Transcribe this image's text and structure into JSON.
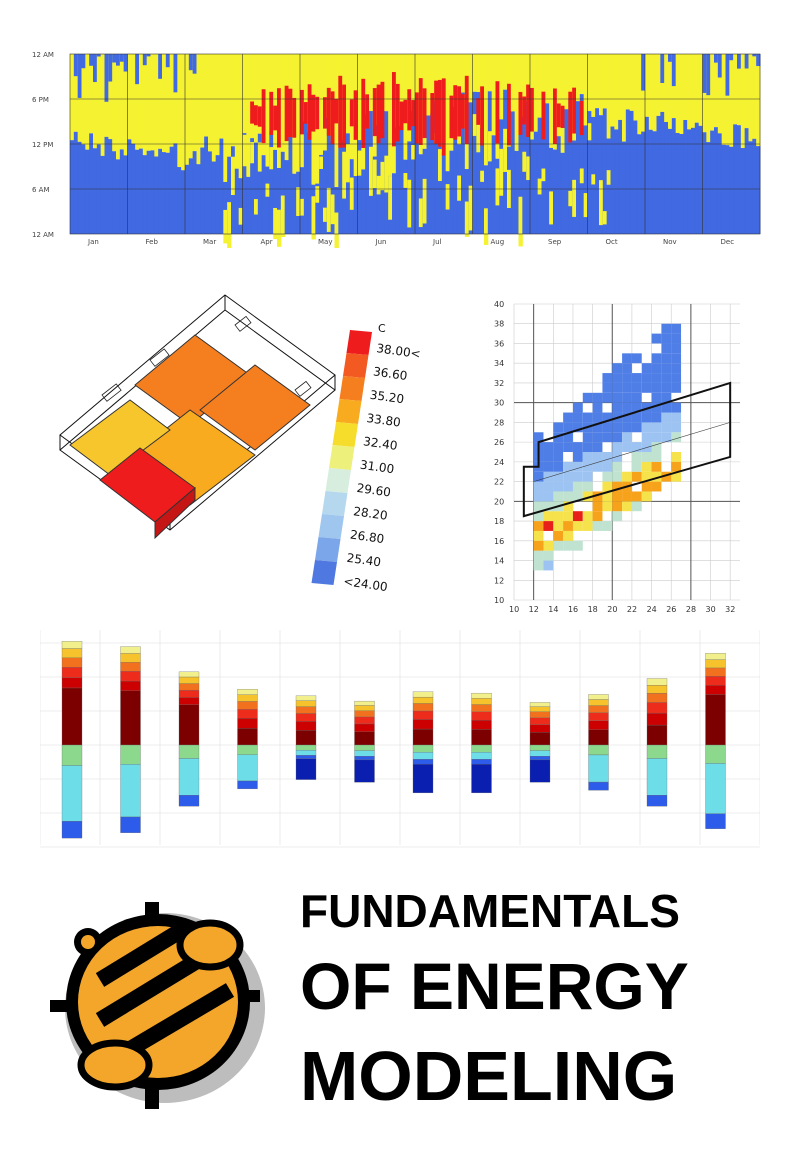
{
  "colors": {
    "hot": "#ee1c1c",
    "neutral": "#f5f231",
    "cold": "#4169e1",
    "logo_orange": "#f4a62a"
  },
  "heatmap_chart": {
    "y_ticks": [
      "12 AM",
      "6 PM",
      "12 PM",
      "6 AM",
      "12 AM"
    ],
    "x_ticks": [
      "Jan",
      "Feb",
      "Mar",
      "Apr",
      "May",
      "Jun",
      "Jul",
      "Aug",
      "Sep",
      "Oct",
      "Nov",
      "Dec"
    ]
  },
  "legend": {
    "unit": "C",
    "labels": [
      "38.00<",
      "36.60",
      "35.20",
      "33.80",
      "32.40",
      "31.00",
      "29.60",
      "28.20",
      "26.80",
      "25.40",
      "<24.00"
    ],
    "colors": [
      "#ee1c1c",
      "#f25a22",
      "#f57f1f",
      "#f8ab1f",
      "#f6dd2c",
      "#edf07a",
      "#d7eedf",
      "#b6d8ef",
      "#9fc6ee",
      "#7ba6ea",
      "#4f78e0"
    ]
  },
  "psychro_chart": {
    "x_ticks": [
      "10",
      "12",
      "14",
      "16",
      "18",
      "20",
      "22",
      "24",
      "26",
      "28",
      "30",
      "32"
    ],
    "y_ticks": [
      "40",
      "38",
      "36",
      "34",
      "32",
      "30",
      "28",
      "26",
      "24",
      "22",
      "20",
      "18",
      "16",
      "14",
      "12",
      "10"
    ]
  },
  "bar_chart": {
    "type": "bar",
    "months": 12,
    "values_pos": [
      7.8,
      7.4,
      5.5,
      4.2,
      3.7,
      3.3,
      4.0,
      3.9,
      3.2,
      3.8,
      5.0,
      6.9
    ],
    "values_neg": [
      -7.0,
      -6.6,
      -4.6,
      -3.3,
      -2.6,
      -2.8,
      -3.6,
      -3.6,
      -2.8,
      -3.4,
      -4.6,
      -6.3
    ]
  },
  "title": {
    "line1": "FUNDAMENTALS",
    "line2": "OF ENERGY",
    "line3": "MODELING"
  }
}
